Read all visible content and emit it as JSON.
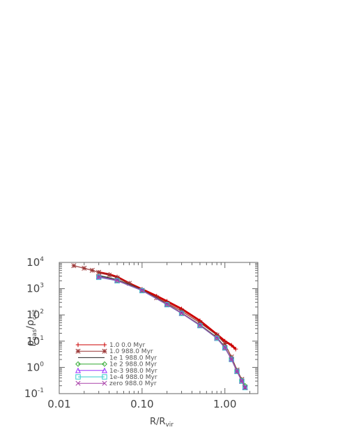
{
  "chart_data": {
    "type": "scatter",
    "xscale": "log",
    "yscale": "log",
    "xlim": [
      0.01,
      2.5
    ],
    "ylim": [
      0.1,
      10000
    ],
    "xlabel": "R/R",
    "xlabel_sub": "vir",
    "ylabel_rho": "ρ",
    "ylabel_gas": "gas",
    "ylabel_slash": "/",
    "ylabel_crit": "crit",
    "x_ticks": [
      {
        "value": 0.01,
        "label": "0.01"
      },
      {
        "value": 0.1,
        "label": "0.10"
      },
      {
        "value": 1.0,
        "label": "1.00"
      }
    ],
    "y_ticks": [
      {
        "value": 0.1,
        "base": "10",
        "exp": "-1"
      },
      {
        "value": 1,
        "base": "10",
        "exp": "0"
      },
      {
        "value": 10,
        "base": "10",
        "exp": "1"
      },
      {
        "value": 100,
        "base": "10",
        "exp": "2"
      },
      {
        "value": 1000,
        "base": "10",
        "exp": "3"
      },
      {
        "value": 10000,
        "base": "10",
        "exp": "4"
      }
    ],
    "legend_position": "bottom-left",
    "grid": false,
    "series": [
      {
        "name": "1.0 0.0 Myr",
        "color": "#cc0000",
        "marker": "plus",
        "x": [
          0.03,
          0.04,
          0.05,
          0.07,
          0.1,
          0.15,
          0.2,
          0.3,
          0.5,
          0.8,
          1.0,
          1.2,
          1.35
        ],
        "y": [
          4200,
          3500,
          2800,
          1600,
          950,
          520,
          330,
          170,
          60,
          18,
          10,
          7,
          5
        ]
      },
      {
        "name": "1.0 988.0 Myr",
        "color": "#993333",
        "marker": "asterisk",
        "x": [
          0.015,
          0.02,
          0.025,
          0.03,
          0.04,
          0.05,
          0.07,
          0.1,
          0.15,
          0.2,
          0.3,
          0.5,
          0.8,
          1.0,
          1.2,
          1.4,
          1.6,
          1.75
        ],
        "y": [
          7500,
          6000,
          5000,
          4200,
          3300,
          2600,
          1600,
          850,
          450,
          280,
          140,
          50,
          17,
          8,
          2.5,
          0.8,
          0.35,
          0.18
        ]
      },
      {
        "name": "1e  1 988.0 Myr",
        "color": "#222222",
        "marker": "line",
        "x": [
          0.03,
          0.05,
          0.1,
          0.2,
          0.3,
          0.5,
          0.8,
          1.0,
          1.2,
          1.4,
          1.6,
          1.75
        ],
        "y": [
          3200,
          2200,
          900,
          260,
          120,
          42,
          14,
          6,
          2,
          0.7,
          0.3,
          0.16
        ]
      },
      {
        "name": "1e  2 988.0 Myr",
        "color": "#33aa33",
        "marker": "diamond",
        "x": [
          0.03,
          0.05,
          0.1,
          0.2,
          0.3,
          0.5,
          0.8,
          1.0,
          1.2,
          1.4,
          1.6,
          1.75
        ],
        "y": [
          3000,
          2100,
          880,
          255,
          118,
          41,
          13.5,
          5.8,
          2.2,
          0.75,
          0.32,
          0.2
        ]
      },
      {
        "name": "1e-3 988.0 Myr",
        "color": "#9933ff",
        "marker": "triangle",
        "x": [
          0.03,
          0.05,
          0.1,
          0.2,
          0.3,
          0.5,
          0.8,
          1.0,
          1.2,
          1.4,
          1.6,
          1.75
        ],
        "y": [
          2900,
          2050,
          860,
          250,
          116,
          40,
          13,
          5.6,
          2.1,
          0.72,
          0.3,
          0.17
        ]
      },
      {
        "name": "1e-4 988.0 Myr",
        "color": "#33cccc",
        "marker": "square",
        "x": [
          0.03,
          0.05,
          0.1,
          0.2,
          0.3,
          0.5,
          0.8,
          1.0,
          1.2,
          1.4,
          1.6,
          1.75
        ],
        "y": [
          2700,
          2000,
          840,
          245,
          114,
          39,
          12.8,
          5.5,
          2.0,
          0.7,
          0.3,
          0.17
        ]
      },
      {
        "name": "zero 988.0 Myr",
        "color": "#aa44aa",
        "marker": "x",
        "x": [
          0.03,
          0.05,
          0.1,
          0.2,
          0.3,
          0.5,
          0.8,
          1.0,
          1.2,
          1.4,
          1.6,
          1.75
        ],
        "y": [
          2800,
          2020,
          850,
          248,
          115,
          40,
          13,
          5.6,
          2.05,
          0.71,
          0.3,
          0.17
        ]
      }
    ]
  }
}
